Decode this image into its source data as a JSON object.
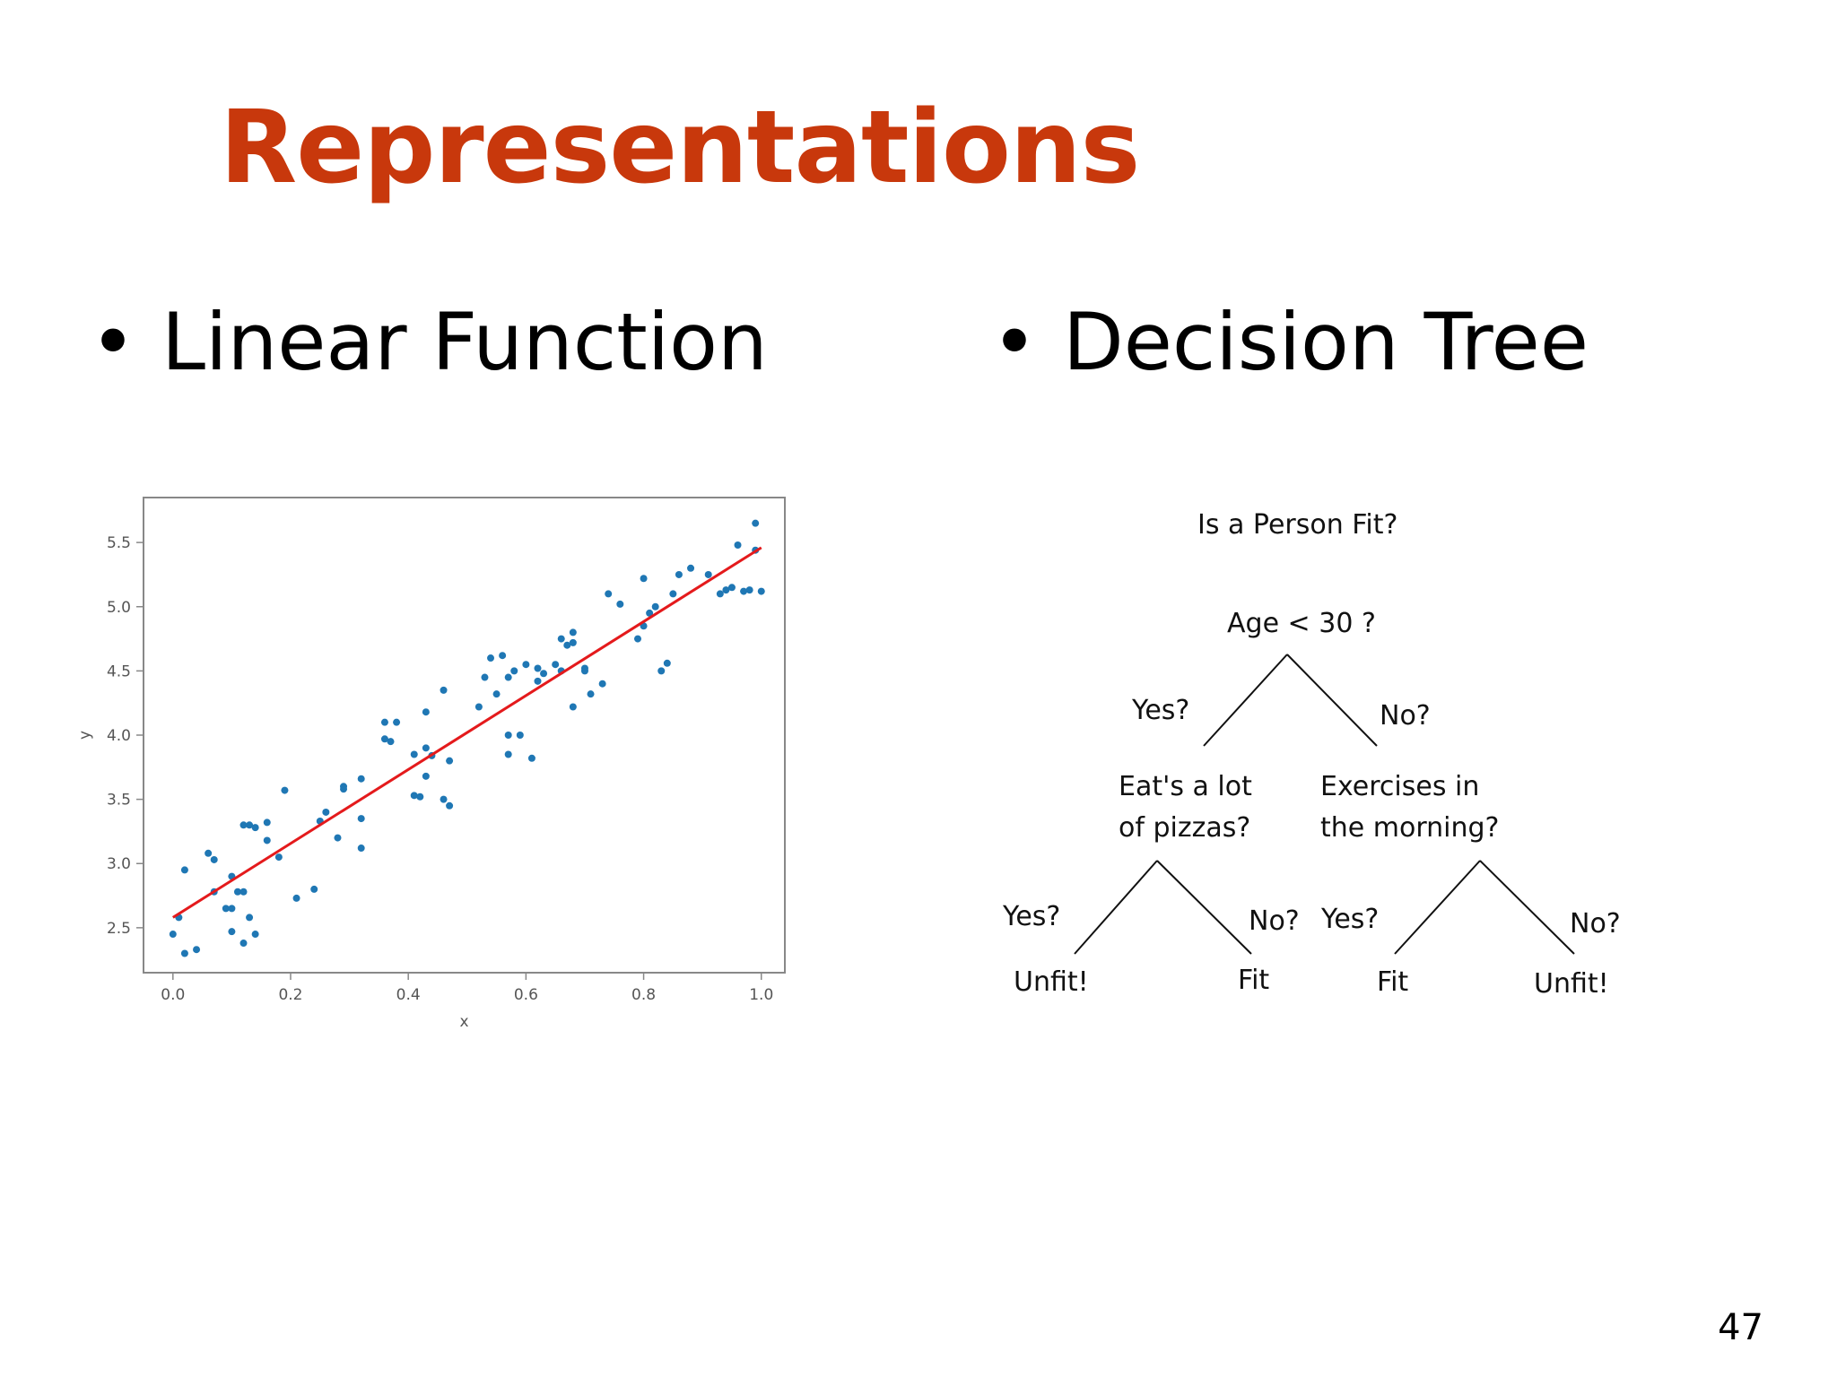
{
  "slide": {
    "title": "Representations",
    "bullets": [
      "Linear Function",
      "Decision Tree"
    ],
    "bullet_glyph": "•",
    "page_number": "47",
    "title_color": "#c8380c"
  },
  "chart_data": {
    "type": "scatter",
    "title": "",
    "xlabel": "x",
    "ylabel": "y",
    "xlim": [
      -0.05,
      1.04
    ],
    "ylim": [
      2.15,
      5.85
    ],
    "xticks": [
      0.0,
      0.2,
      0.4,
      0.6,
      0.8,
      1.0
    ],
    "xtick_labels": [
      "0.0",
      "0.2",
      "0.4",
      "0.6",
      "0.8",
      "1.0"
    ],
    "yticks": [
      2.5,
      3.0,
      3.5,
      4.0,
      4.5,
      5.0,
      5.5
    ],
    "ytick_labels": [
      "2.5",
      "3.0",
      "3.5",
      "4.0",
      "4.5",
      "5.0",
      "5.5"
    ],
    "grid": false,
    "point_color": "#1f77b4",
    "line_color": "#e41a1c",
    "points": [
      [
        0.0,
        2.45
      ],
      [
        0.01,
        2.58
      ],
      [
        0.02,
        2.3
      ],
      [
        0.02,
        2.95
      ],
      [
        0.04,
        2.33
      ],
      [
        0.06,
        3.08
      ],
      [
        0.07,
        2.78
      ],
      [
        0.07,
        3.03
      ],
      [
        0.09,
        2.65
      ],
      [
        0.1,
        2.9
      ],
      [
        0.1,
        2.65
      ],
      [
        0.1,
        2.47
      ],
      [
        0.11,
        2.78
      ],
      [
        0.12,
        2.38
      ],
      [
        0.12,
        3.3
      ],
      [
        0.12,
        2.78
      ],
      [
        0.13,
        3.3
      ],
      [
        0.13,
        2.58
      ],
      [
        0.14,
        3.28
      ],
      [
        0.14,
        2.45
      ],
      [
        0.16,
        3.32
      ],
      [
        0.16,
        3.18
      ],
      [
        0.18,
        3.05
      ],
      [
        0.19,
        3.57
      ],
      [
        0.21,
        2.73
      ],
      [
        0.24,
        2.8
      ],
      [
        0.25,
        3.33
      ],
      [
        0.26,
        3.4
      ],
      [
        0.28,
        3.2
      ],
      [
        0.29,
        3.6
      ],
      [
        0.29,
        3.58
      ],
      [
        0.32,
        3.66
      ],
      [
        0.32,
        3.35
      ],
      [
        0.32,
        3.12
      ],
      [
        0.36,
        3.97
      ],
      [
        0.36,
        4.1
      ],
      [
        0.37,
        3.95
      ],
      [
        0.38,
        4.1
      ],
      [
        0.41,
        3.85
      ],
      [
        0.41,
        3.53
      ],
      [
        0.42,
        3.52
      ],
      [
        0.43,
        4.18
      ],
      [
        0.43,
        3.9
      ],
      [
        0.43,
        3.68
      ],
      [
        0.44,
        3.84
      ],
      [
        0.46,
        3.5
      ],
      [
        0.46,
        4.35
      ],
      [
        0.47,
        3.45
      ],
      [
        0.47,
        3.8
      ],
      [
        0.52,
        4.22
      ],
      [
        0.53,
        4.45
      ],
      [
        0.54,
        4.6
      ],
      [
        0.55,
        4.32
      ],
      [
        0.56,
        4.62
      ],
      [
        0.57,
        4.45
      ],
      [
        0.57,
        4.0
      ],
      [
        0.57,
        3.85
      ],
      [
        0.58,
        4.5
      ],
      [
        0.59,
        4.0
      ],
      [
        0.6,
        4.55
      ],
      [
        0.61,
        3.82
      ],
      [
        0.62,
        4.52
      ],
      [
        0.62,
        4.42
      ],
      [
        0.63,
        4.48
      ],
      [
        0.65,
        4.55
      ],
      [
        0.66,
        4.5
      ],
      [
        0.66,
        4.75
      ],
      [
        0.67,
        4.7
      ],
      [
        0.68,
        4.8
      ],
      [
        0.68,
        4.72
      ],
      [
        0.68,
        4.22
      ],
      [
        0.7,
        4.52
      ],
      [
        0.7,
        4.5
      ],
      [
        0.71,
        4.32
      ],
      [
        0.73,
        4.4
      ],
      [
        0.74,
        5.1
      ],
      [
        0.76,
        5.02
      ],
      [
        0.79,
        4.75
      ],
      [
        0.8,
        4.85
      ],
      [
        0.8,
        5.22
      ],
      [
        0.81,
        4.95
      ],
      [
        0.82,
        5.0
      ],
      [
        0.83,
        4.5
      ],
      [
        0.84,
        4.56
      ],
      [
        0.85,
        5.1
      ],
      [
        0.86,
        5.25
      ],
      [
        0.88,
        5.3
      ],
      [
        0.91,
        5.25
      ],
      [
        0.93,
        5.1
      ],
      [
        0.94,
        5.13
      ],
      [
        0.95,
        5.15
      ],
      [
        0.96,
        5.48
      ],
      [
        0.97,
        5.12
      ],
      [
        0.98,
        5.13
      ],
      [
        0.99,
        5.44
      ],
      [
        0.99,
        5.65
      ],
      [
        1.0,
        5.12
      ]
    ],
    "fit_line": {
      "x": [
        0.0,
        1.0
      ],
      "y": [
        2.58,
        5.46
      ]
    }
  },
  "tree": {
    "title": "Is a Person Fit?",
    "root": "Age < 30 ?",
    "edge_root_yes": "Yes?",
    "edge_root_no": "No?",
    "left_node_line1": "Eat's a lot",
    "left_node_line2": "of pizzas?",
    "right_node_line1": "Exercises in",
    "right_node_line2": "the morning?",
    "edge_left_yes": "Yes?",
    "edge_left_no": "No?",
    "edge_right_yes": "Yes?",
    "edge_right_no": "No?",
    "leaf_ll": "Unfit!",
    "leaf_lr": "Fit",
    "leaf_rl": "Fit",
    "leaf_rr": "Unfit!"
  }
}
